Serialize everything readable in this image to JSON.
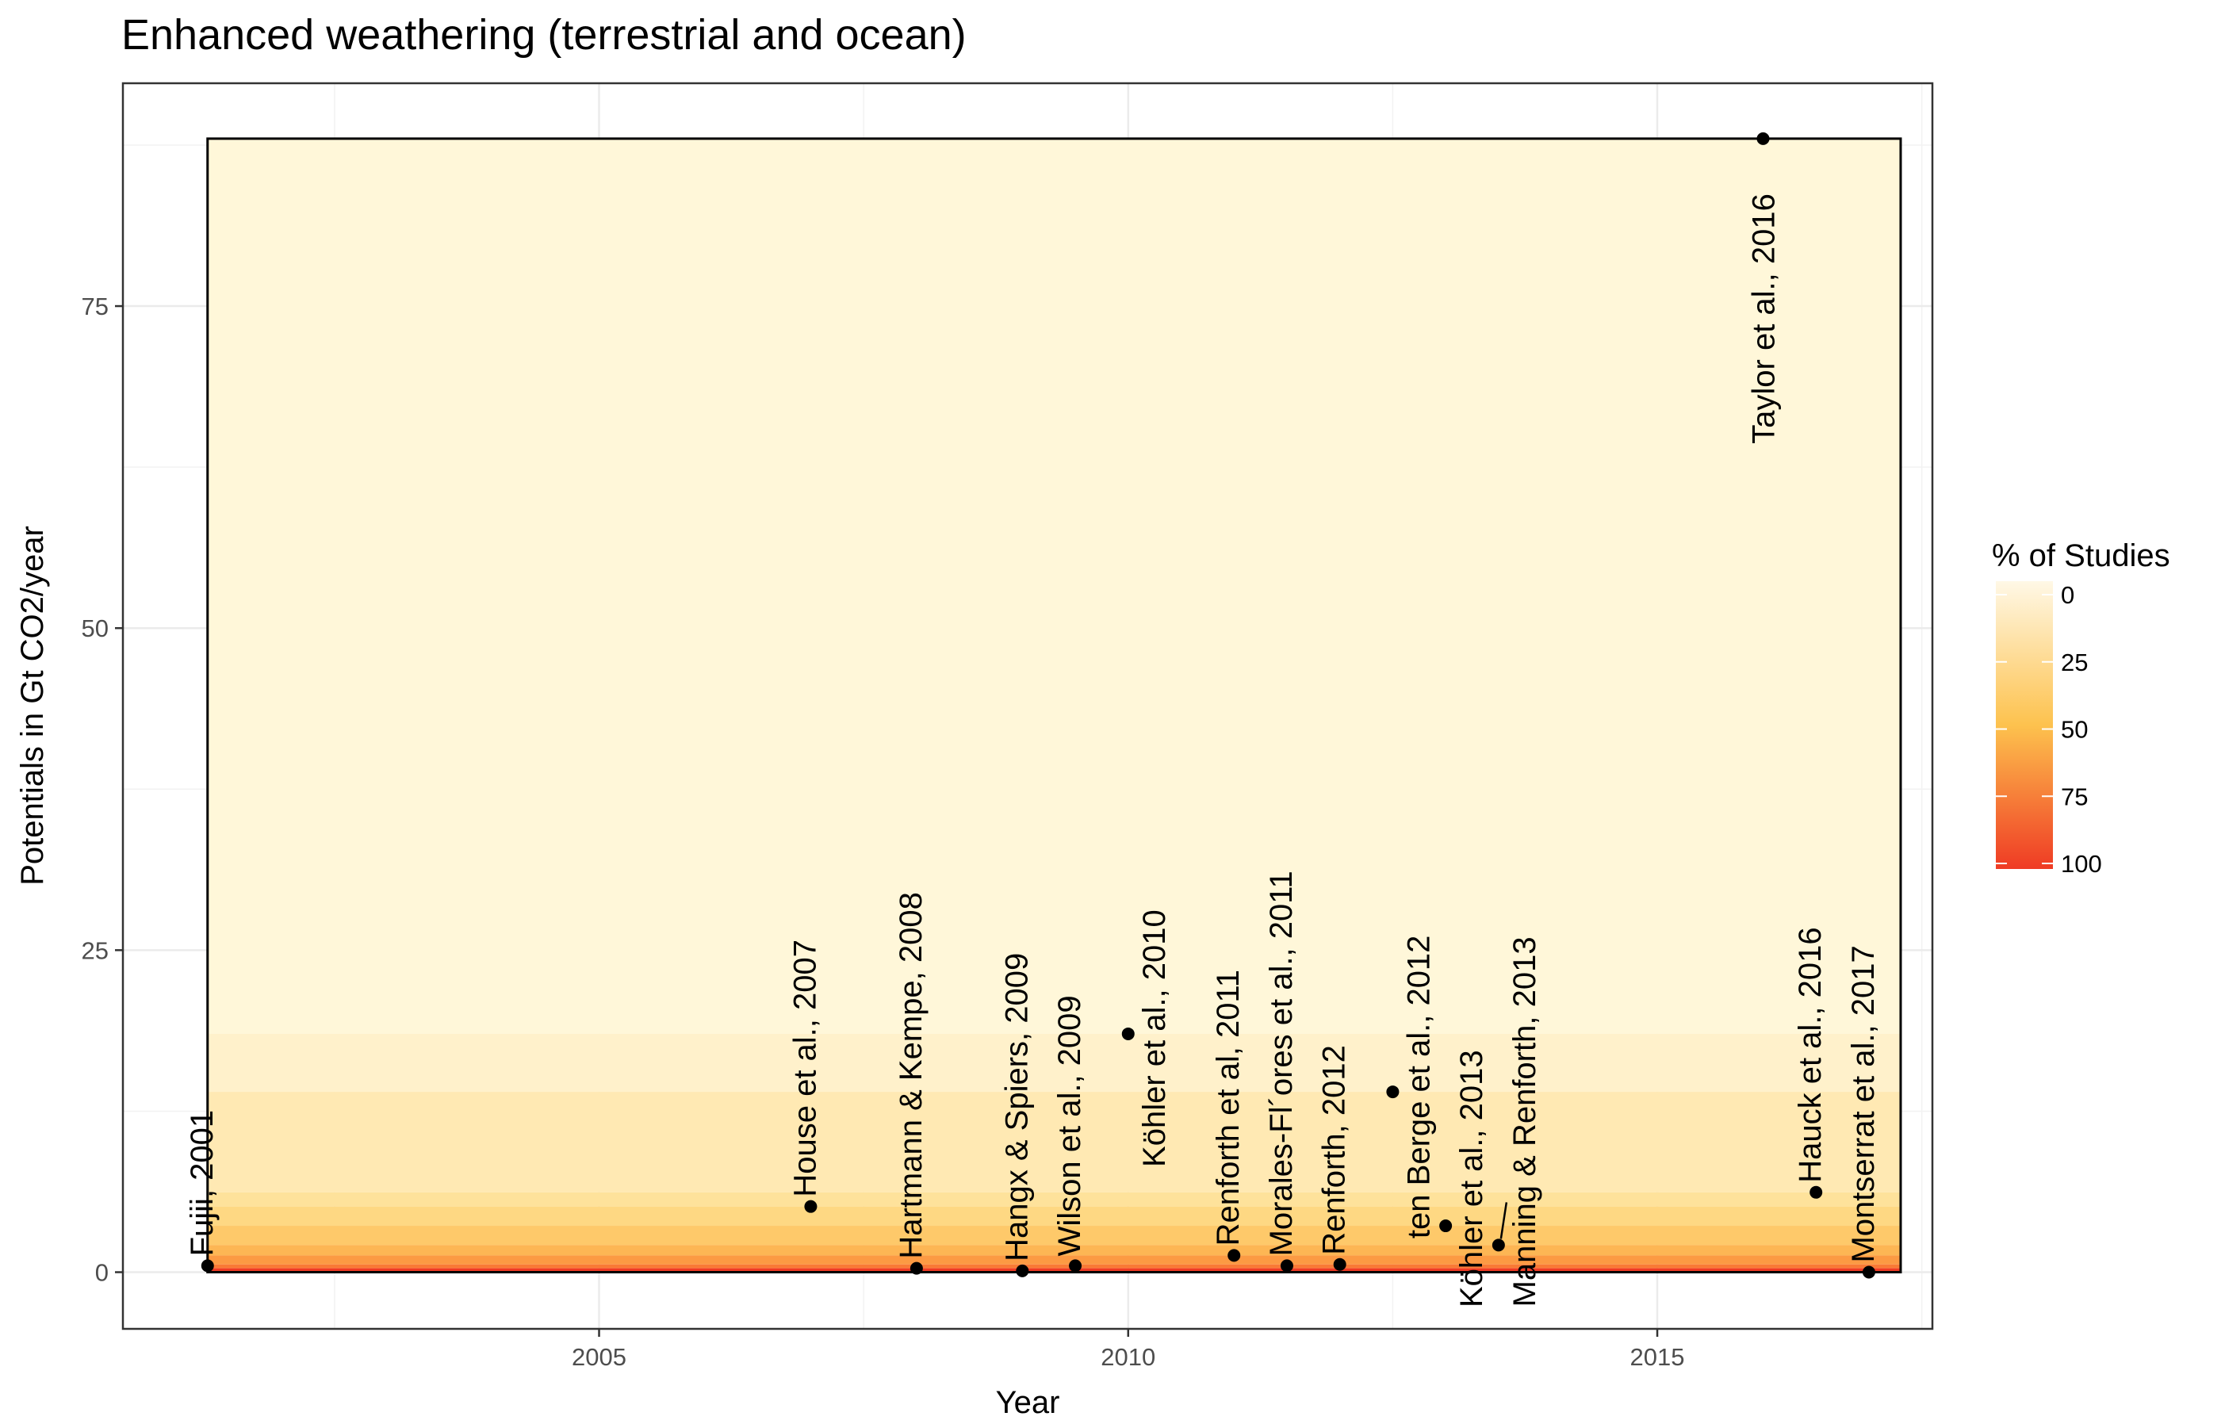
{
  "chart_data": {
    "type": "scatter",
    "title": "Enhanced weathering (terrestrial and ocean)",
    "xlabel": "Year",
    "ylabel": "Potentials in Gt CO2/year",
    "xlim": [
      2000.5,
      2017.6
    ],
    "ylim": [
      -4.4,
      92.3
    ],
    "xticks": [
      2005,
      2010,
      2015
    ],
    "yticks": [
      0,
      25,
      50,
      75
    ],
    "grid": true,
    "legend": {
      "title": "% of Studies",
      "position": "right",
      "ticks": [
        0,
        25,
        50,
        75,
        100
      ],
      "color_low": "#fff8e6",
      "color_mid": "#fdc24e",
      "color_high": "#ef3b24"
    },
    "band_extent": {
      "x": [
        2001.3,
        2017.3
      ],
      "y": [
        0,
        88
      ]
    },
    "bands": [
      {
        "ymin": 18.5,
        "ymax": 88,
        "color": "#fff7d9"
      },
      {
        "ymin": 14,
        "ymax": 18.5,
        "color": "#fff1cb"
      },
      {
        "ymin": 6.2,
        "ymax": 14,
        "color": "#ffe9b3"
      },
      {
        "ymin": 5.1,
        "ymax": 6.2,
        "color": "#fee29b"
      },
      {
        "ymin": 3.6,
        "ymax": 5.1,
        "color": "#fed883"
      },
      {
        "ymin": 2.1,
        "ymax": 3.6,
        "color": "#fec96a"
      },
      {
        "ymin": 1.3,
        "ymax": 2.1,
        "color": "#fdb654"
      },
      {
        "ymin": 0.6,
        "ymax": 1.3,
        "color": "#fc9a43"
      },
      {
        "ymin": 0.3,
        "ymax": 0.6,
        "color": "#f97a35"
      },
      {
        "ymin": 0,
        "ymax": 0.3,
        "color": "#ef3b24"
      }
    ],
    "points": [
      {
        "label": "Fujii, 2001",
        "x": 2001.3,
        "y": 0.5
      },
      {
        "label": "House et al., 2007",
        "x": 2007.0,
        "y": 5.1
      },
      {
        "label": "Hartmann & Kempe, 2008",
        "x": 2008.0,
        "y": 0.3
      },
      {
        "label": "Hangx & Spiers, 2009",
        "x": 2009.0,
        "y": 0.1
      },
      {
        "label": "Wilson et al., 2009",
        "x": 2009.5,
        "y": 0.5
      },
      {
        "label": "Köhler et al., 2010",
        "x": 2010.0,
        "y": 18.5
      },
      {
        "label": "Renforth et al, 2011",
        "x": 2011.0,
        "y": 1.3
      },
      {
        "label": "Morales-Fl´ores et al., 2011",
        "x": 2011.5,
        "y": 0.5
      },
      {
        "label": "Renforth, 2012",
        "x": 2012.0,
        "y": 0.6
      },
      {
        "label": "ten Berge et al., 2012",
        "x": 2012.5,
        "y": 14.0
      },
      {
        "label": "Köhler et al., 2013",
        "x": 2013.0,
        "y": 3.6
      },
      {
        "label": "Manning & Renforth, 2013",
        "x": 2013.5,
        "y": 2.1
      },
      {
        "label": "Taylor et al., 2016",
        "x": 2016.0,
        "y": 88.0
      },
      {
        "label": "Hauck et al., 2016",
        "x": 2016.5,
        "y": 6.2
      },
      {
        "label": "Montserrat et al., 2017",
        "x": 2017.0,
        "y": 0.0
      }
    ]
  }
}
